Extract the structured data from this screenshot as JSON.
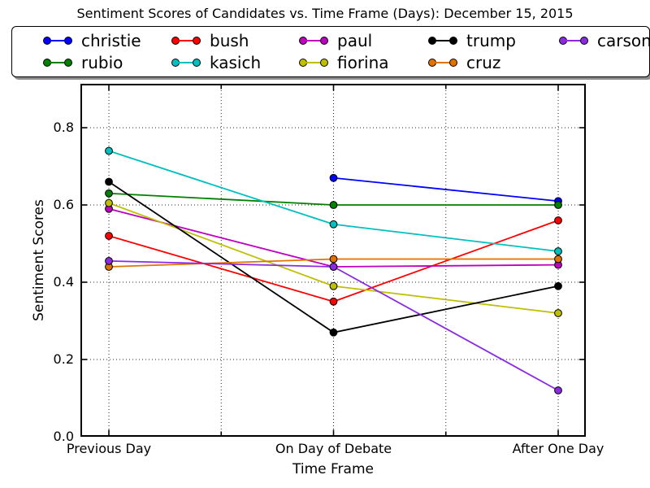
{
  "title": "Sentiment Scores of Candidates vs. Time Frame (Days): December 15, 2015",
  "legend": {
    "items": [
      {
        "label": "christie",
        "color": "#0000ff"
      },
      {
        "label": "bush",
        "color": "#ff0000"
      },
      {
        "label": "paul",
        "color": "#bf00bf"
      },
      {
        "label": "trump",
        "color": "#000000"
      },
      {
        "label": "carson",
        "color": "#8a2be2"
      },
      {
        "label": "rubio",
        "color": "#008000"
      },
      {
        "label": "kasich",
        "color": "#00bfbf"
      },
      {
        "label": "fiorina",
        "color": "#bfbf00"
      },
      {
        "label": "cruz",
        "color": "#e07300"
      }
    ]
  },
  "axes": {
    "xlabel": "Time Frame",
    "ylabel": "Sentiment Scores",
    "y_ticks": [
      "0.0",
      "0.2",
      "0.4",
      "0.6",
      "0.8"
    ],
    "categories": [
      "Previous Day",
      "On Day of Debate",
      "After One Day"
    ]
  },
  "chart_data": {
    "type": "line",
    "title": "Sentiment Scores of Candidates vs. Time Frame (Days): December 15, 2015",
    "xlabel": "Time Frame",
    "ylabel": "Sentiment Scores",
    "categories": [
      "Previous Day",
      "On Day of Debate",
      "After One Day"
    ],
    "ylim": [
      0,
      0.9
    ],
    "grid": true,
    "legend_position": "top",
    "series": [
      {
        "name": "christie",
        "color": "#0000ff",
        "values": [
          null,
          0.67,
          0.61
        ]
      },
      {
        "name": "rubio",
        "color": "#008000",
        "values": [
          0.63,
          0.6,
          0.6
        ]
      },
      {
        "name": "bush",
        "color": "#ff0000",
        "values": [
          0.52,
          0.35,
          0.56
        ]
      },
      {
        "name": "kasich",
        "color": "#00bfbf",
        "values": [
          0.74,
          0.55,
          0.48
        ]
      },
      {
        "name": "paul",
        "color": "#bf00bf",
        "values": [
          0.59,
          0.44,
          0.445
        ]
      },
      {
        "name": "fiorina",
        "color": "#bfbf00",
        "values": [
          0.605,
          0.39,
          0.32
        ]
      },
      {
        "name": "trump",
        "color": "#000000",
        "values": [
          0.66,
          0.27,
          0.39
        ]
      },
      {
        "name": "cruz",
        "color": "#e07300",
        "values": [
          0.44,
          0.46,
          0.46
        ]
      },
      {
        "name": "carson",
        "color": "#8a2be2",
        "values": [
          0.455,
          0.44,
          0.12
        ]
      }
    ]
  }
}
